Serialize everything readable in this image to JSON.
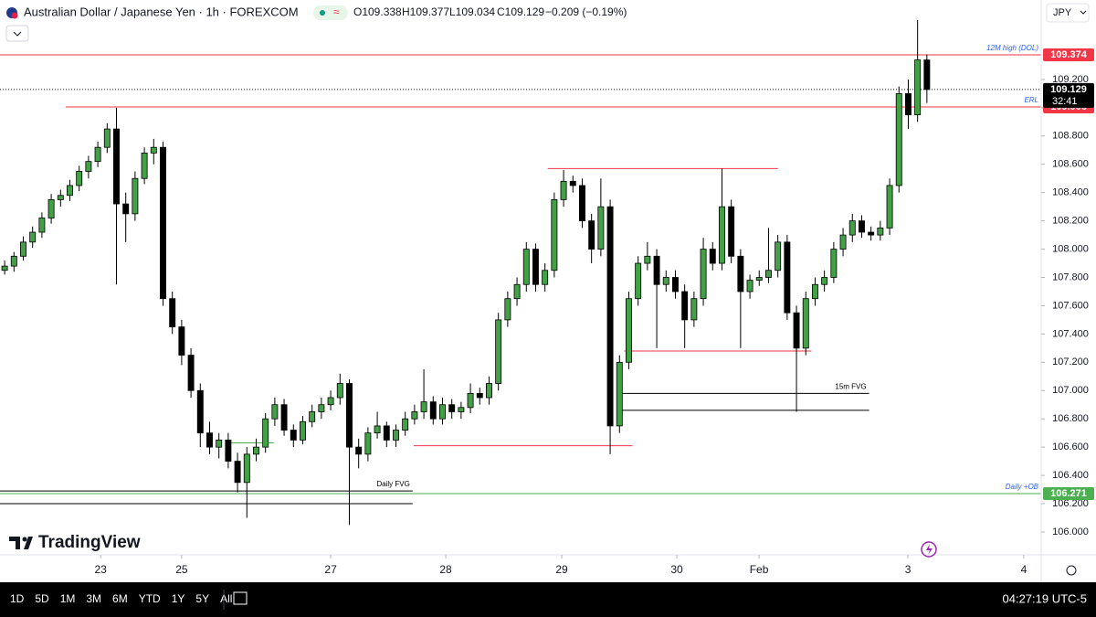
{
  "header": {
    "symbol": "Australian Dollar / Japanese Yen · 1h · FOREXCOM",
    "open": "O109.338",
    "high": "H109.377",
    "low": "L109.034",
    "close": "C109.129",
    "change": "−0.209 (−0.19%)"
  },
  "currency": "JPY",
  "logo": "TradingView",
  "ranges": [
    "1D",
    "5D",
    "1M",
    "3M",
    "6M",
    "YTD",
    "1Y",
    "5Y",
    "All"
  ],
  "clock": "04:27:19 UTC-5",
  "chart_data": {
    "type": "candlestick",
    "up_color": "#43a047",
    "down_color": "#000000",
    "ylim": [
      105.851,
      109.762
    ],
    "yticks": [
      {
        "value": 106.0,
        "label": "106.000"
      },
      {
        "value": 106.2,
        "label": "106.200"
      },
      {
        "value": 106.4,
        "label": "106.400"
      },
      {
        "value": 106.6,
        "label": "106.600"
      },
      {
        "value": 106.8,
        "label": "106.800"
      },
      {
        "value": 107.0,
        "label": "107.000"
      },
      {
        "value": 107.2,
        "label": "107.200"
      },
      {
        "value": 107.4,
        "label": "107.400"
      },
      {
        "value": 107.6,
        "label": "107.600"
      },
      {
        "value": 107.8,
        "label": "107.800"
      },
      {
        "value": 108.0,
        "label": "108.000"
      },
      {
        "value": 108.2,
        "label": "108.200"
      },
      {
        "value": 108.4,
        "label": "108.400"
      },
      {
        "value": 108.6,
        "label": "108.600"
      },
      {
        "value": 108.8,
        "label": "108.800"
      },
      {
        "value": 109.0,
        "label": "109.000"
      },
      {
        "value": 109.2,
        "label": "109.200"
      }
    ],
    "xlim": [
      -0.5,
      111.27
    ],
    "xticks": [
      {
        "value": 10.3,
        "label": "23"
      },
      {
        "value": 19.0,
        "label": "25"
      },
      {
        "value": 35.0,
        "label": "27"
      },
      {
        "value": 47.35,
        "label": "28"
      },
      {
        "value": 59.8,
        "label": "29"
      },
      {
        "value": 72.15,
        "label": "30"
      },
      {
        "value": 80.98,
        "label": "Feb"
      },
      {
        "value": 96.96,
        "label": "3"
      },
      {
        "value": 109.4,
        "label": "4"
      }
    ],
    "last_price": 109.129,
    "countdown": "32:41",
    "levels": [
      {
        "price": 109.374,
        "color": "#f23645",
        "label": "12M high (DOL)",
        "label_color": "#2962ff",
        "tag": true
      },
      {
        "price": 109.006,
        "from": 6.56,
        "color": "#f23645",
        "label": "ERL",
        "label_color": "#2962ff",
        "tag": true
      },
      {
        "price": 106.271,
        "color": "#4caf50",
        "label": "Daily +OB",
        "label_color": "#2962ff",
        "tag": true
      },
      {
        "price": 108.57,
        "from": 58.3,
        "to": 83.0,
        "color": "#f23645"
      },
      {
        "price": 107.28,
        "from": 66.5,
        "to": 86.6,
        "color": "#f23645"
      },
      {
        "price": 106.61,
        "from": 43.9,
        "to": 67.4,
        "color": "#f23645"
      },
      {
        "price": 106.98,
        "from": 65.9,
        "to": 92.8,
        "color": "#000000",
        "label": "15m FVG",
        "label_color": "#000000"
      },
      {
        "price": 106.86,
        "from": 65.9,
        "to": 92.8,
        "color": "#000000"
      },
      {
        "price": 106.29,
        "to": 43.8,
        "color": "#000000",
        "label": "Daily FVG",
        "label_color": "#000000"
      },
      {
        "price": 106.2,
        "to": 43.8,
        "color": "#000000"
      },
      {
        "price": 106.63,
        "from": 24.0,
        "to": 28.9,
        "color": "#4caf50"
      }
    ],
    "candles": [
      [
        107.85,
        107.92,
        107.82,
        107.88
      ],
      [
        107.88,
        107.98,
        107.84,
        107.95
      ],
      [
        107.95,
        108.09,
        107.92,
        108.05
      ],
      [
        108.05,
        108.16,
        108.01,
        108.12
      ],
      [
        108.12,
        108.26,
        108.08,
        108.22
      ],
      [
        108.22,
        108.39,
        108.18,
        108.35
      ],
      [
        108.35,
        108.42,
        108.3,
        108.38
      ],
      [
        108.38,
        108.49,
        108.34,
        108.45
      ],
      [
        108.45,
        108.59,
        108.41,
        108.55
      ],
      [
        108.55,
        108.66,
        108.5,
        108.62
      ],
      [
        108.62,
        108.76,
        108.58,
        108.72
      ],
      [
        108.72,
        108.89,
        108.68,
        108.85
      ],
      [
        108.85,
        109.0,
        107.75,
        108.32
      ],
      [
        108.32,
        108.4,
        108.05,
        108.25
      ],
      [
        108.25,
        108.55,
        108.2,
        108.5
      ],
      [
        108.5,
        108.72,
        108.46,
        108.68
      ],
      [
        108.68,
        108.78,
        108.6,
        108.72
      ],
      [
        108.72,
        108.76,
        107.6,
        107.65
      ],
      [
        107.65,
        107.7,
        107.4,
        107.45
      ],
      [
        107.45,
        107.5,
        107.18,
        107.25
      ],
      [
        107.25,
        107.3,
        106.95,
        107.0
      ],
      [
        107.0,
        107.05,
        106.6,
        106.7
      ],
      [
        106.7,
        106.78,
        106.55,
        106.6
      ],
      [
        106.6,
        106.7,
        106.52,
        106.65
      ],
      [
        106.65,
        106.7,
        106.45,
        106.5
      ],
      [
        106.5,
        106.56,
        106.28,
        106.35
      ],
      [
        106.35,
        106.6,
        106.1,
        106.55
      ],
      [
        106.55,
        106.66,
        106.5,
        106.6
      ],
      [
        106.6,
        106.84,
        106.56,
        106.8
      ],
      [
        106.8,
        106.95,
        106.75,
        106.9
      ],
      [
        106.9,
        106.94,
        106.68,
        106.72
      ],
      [
        106.72,
        106.76,
        106.6,
        106.65
      ],
      [
        106.65,
        106.82,
        106.62,
        106.78
      ],
      [
        106.78,
        106.9,
        106.74,
        106.85
      ],
      [
        106.85,
        106.95,
        106.8,
        106.9
      ],
      [
        106.9,
        107.0,
        106.86,
        106.95
      ],
      [
        106.95,
        107.12,
        106.9,
        107.05
      ],
      [
        107.05,
        107.08,
        106.05,
        106.6
      ],
      [
        106.6,
        106.66,
        106.45,
        106.55
      ],
      [
        106.55,
        106.74,
        106.5,
        106.7
      ],
      [
        106.7,
        106.85,
        106.66,
        106.75
      ],
      [
        106.75,
        106.78,
        106.6,
        106.65
      ],
      [
        106.65,
        106.76,
        106.6,
        106.72
      ],
      [
        106.72,
        106.85,
        106.68,
        106.8
      ],
      [
        106.8,
        106.9,
        106.76,
        106.85
      ],
      [
        106.85,
        107.15,
        106.8,
        106.92
      ],
      [
        106.92,
        106.96,
        106.76,
        106.8
      ],
      [
        106.8,
        106.95,
        106.76,
        106.9
      ],
      [
        106.9,
        106.94,
        106.8,
        106.85
      ],
      [
        106.85,
        106.92,
        106.8,
        106.88
      ],
      [
        106.88,
        107.05,
        106.84,
        106.98
      ],
      [
        106.98,
        107.02,
        106.9,
        106.95
      ],
      [
        106.95,
        107.1,
        106.9,
        107.05
      ],
      [
        107.05,
        107.55,
        107.0,
        107.5
      ],
      [
        107.5,
        107.7,
        107.45,
        107.65
      ],
      [
        107.65,
        107.8,
        107.6,
        107.75
      ],
      [
        107.75,
        108.05,
        107.7,
        108.0
      ],
      [
        108.0,
        108.04,
        107.7,
        107.75
      ],
      [
        107.75,
        107.9,
        107.7,
        107.85
      ],
      [
        107.85,
        108.4,
        107.8,
        108.35
      ],
      [
        108.35,
        108.56,
        108.3,
        108.48
      ],
      [
        108.48,
        108.52,
        108.4,
        108.45
      ],
      [
        108.45,
        108.5,
        108.15,
        108.2
      ],
      [
        108.2,
        108.25,
        107.9,
        108.0
      ],
      [
        108.0,
        108.5,
        107.95,
        108.3
      ],
      [
        108.3,
        108.35,
        106.55,
        106.75
      ],
      [
        106.75,
        107.25,
        106.7,
        107.2
      ],
      [
        107.2,
        107.7,
        107.15,
        107.65
      ],
      [
        107.65,
        107.95,
        107.6,
        107.9
      ],
      [
        107.9,
        108.05,
        107.85,
        107.95
      ],
      [
        107.95,
        108.0,
        107.3,
        107.75
      ],
      [
        107.75,
        107.85,
        107.7,
        107.8
      ],
      [
        107.8,
        107.85,
        107.65,
        107.7
      ],
      [
        107.7,
        107.75,
        107.3,
        107.5
      ],
      [
        107.5,
        107.7,
        107.45,
        107.65
      ],
      [
        107.65,
        108.08,
        107.6,
        108.0
      ],
      [
        108.0,
        108.05,
        107.85,
        107.9
      ],
      [
        107.9,
        108.57,
        107.85,
        108.3
      ],
      [
        108.3,
        108.35,
        107.9,
        107.95
      ],
      [
        107.95,
        108.0,
        107.3,
        107.7
      ],
      [
        107.7,
        107.82,
        107.65,
        107.78
      ],
      [
        107.78,
        107.85,
        107.74,
        107.8
      ],
      [
        107.8,
        108.15,
        107.76,
        107.85
      ],
      [
        107.85,
        108.1,
        107.8,
        108.05
      ],
      [
        108.05,
        108.1,
        107.5,
        107.55
      ],
      [
        107.55,
        107.6,
        106.85,
        107.3
      ],
      [
        107.3,
        107.7,
        107.25,
        107.65
      ],
      [
        107.65,
        107.8,
        107.6,
        107.75
      ],
      [
        107.75,
        107.85,
        107.7,
        107.8
      ],
      [
        107.8,
        108.05,
        107.76,
        108.0
      ],
      [
        108.0,
        108.15,
        107.95,
        108.1
      ],
      [
        108.1,
        108.25,
        108.05,
        108.2
      ],
      [
        108.2,
        108.24,
        108.08,
        108.12
      ],
      [
        108.12,
        108.16,
        108.06,
        108.1
      ],
      [
        108.1,
        108.2,
        108.06,
        108.15
      ],
      [
        108.15,
        108.5,
        108.1,
        108.45
      ],
      [
        108.45,
        109.15,
        108.4,
        109.1
      ],
      [
        109.1,
        109.2,
        108.85,
        108.95
      ],
      [
        108.95,
        109.62,
        108.9,
        109.338
      ],
      [
        109.338,
        109.377,
        109.034,
        109.129
      ]
    ]
  }
}
